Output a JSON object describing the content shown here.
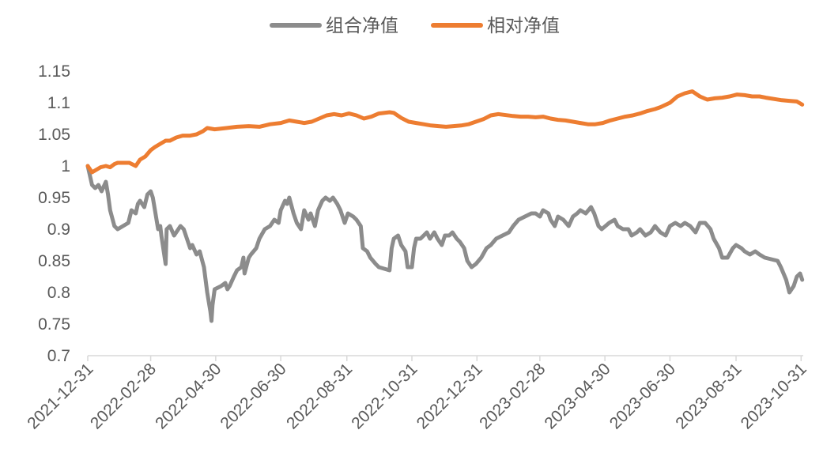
{
  "chart_data": {
    "type": "line",
    "title": "",
    "xlabel": "",
    "ylabel": "",
    "ylim": [
      0.7,
      1.15
    ],
    "yticks": [
      "0.7",
      "0.75",
      "0.8",
      "0.85",
      "0.9",
      "0.95",
      "1",
      "1.05",
      "1.1",
      "1.15"
    ],
    "xlim": [
      "2021-12-31",
      "2023-11-02"
    ],
    "xticks": [
      "2021-12-31",
      "2022-02-28",
      "2022-04-30",
      "2022-06-30",
      "2022-08-31",
      "2022-10-31",
      "2022-12-31",
      "2023-02-28",
      "2023-04-30",
      "2023-06-30",
      "2023-08-31",
      "2023-10-31"
    ],
    "legend_position": "top-center",
    "grid": false,
    "series": [
      {
        "name": "组合净值",
        "color": "#8c8c8c",
        "points": [
          [
            "2021-12-31",
            1.0
          ],
          [
            "2022-01-04",
            0.97
          ],
          [
            "2022-01-07",
            0.965
          ],
          [
            "2022-01-10",
            0.97
          ],
          [
            "2022-01-13",
            0.96
          ],
          [
            "2022-01-17",
            0.975
          ],
          [
            "2022-01-19",
            0.955
          ],
          [
            "2022-01-21",
            0.93
          ],
          [
            "2022-01-25",
            0.905
          ],
          [
            "2022-01-28",
            0.9
          ],
          [
            "2022-02-07",
            0.91
          ],
          [
            "2022-02-10",
            0.93
          ],
          [
            "2022-02-14",
            0.925
          ],
          [
            "2022-02-16",
            0.94
          ],
          [
            "2022-02-18",
            0.945
          ],
          [
            "2022-02-22",
            0.935
          ],
          [
            "2022-02-25",
            0.955
          ],
          [
            "2022-02-28",
            0.96
          ],
          [
            "2022-03-02",
            0.95
          ],
          [
            "2022-03-04",
            0.93
          ],
          [
            "2022-03-07",
            0.9
          ],
          [
            "2022-03-09",
            0.905
          ],
          [
            "2022-03-10",
            0.89
          ],
          [
            "2022-03-14",
            0.845
          ],
          [
            "2022-03-15",
            0.9
          ],
          [
            "2022-03-18",
            0.905
          ],
          [
            "2022-03-22",
            0.89
          ],
          [
            "2022-03-24",
            0.895
          ],
          [
            "2022-03-28",
            0.905
          ],
          [
            "2022-03-31",
            0.9
          ],
          [
            "2022-04-06",
            0.87
          ],
          [
            "2022-04-08",
            0.875
          ],
          [
            "2022-04-12",
            0.86
          ],
          [
            "2022-04-15",
            0.865
          ],
          [
            "2022-04-19",
            0.84
          ],
          [
            "2022-04-22",
            0.8
          ],
          [
            "2022-04-25",
            0.77
          ],
          [
            "2022-04-26",
            0.755
          ],
          [
            "2022-04-27",
            0.78
          ],
          [
            "2022-04-29",
            0.805
          ],
          [
            "2022-05-05",
            0.81
          ],
          [
            "2022-05-09",
            0.815
          ],
          [
            "2022-05-11",
            0.805
          ],
          [
            "2022-05-13",
            0.81
          ],
          [
            "2022-05-17",
            0.825
          ],
          [
            "2022-05-20",
            0.835
          ],
          [
            "2022-05-24",
            0.84
          ],
          [
            "2022-05-26",
            0.855
          ],
          [
            "2022-05-27",
            0.83
          ],
          [
            "2022-05-31",
            0.855
          ],
          [
            "2022-06-02",
            0.86
          ],
          [
            "2022-06-07",
            0.87
          ],
          [
            "2022-06-10",
            0.885
          ],
          [
            "2022-06-15",
            0.9
          ],
          [
            "2022-06-20",
            0.905
          ],
          [
            "2022-06-24",
            0.915
          ],
          [
            "2022-06-28",
            0.91
          ],
          [
            "2022-06-30",
            0.93
          ],
          [
            "2022-07-04",
            0.945
          ],
          [
            "2022-07-06",
            0.94
          ],
          [
            "2022-07-08",
            0.95
          ],
          [
            "2022-07-12",
            0.925
          ],
          [
            "2022-07-15",
            0.91
          ],
          [
            "2022-07-19",
            0.9
          ],
          [
            "2022-07-22",
            0.93
          ],
          [
            "2022-07-26",
            0.915
          ],
          [
            "2022-07-28",
            0.925
          ],
          [
            "2022-08-01",
            0.905
          ],
          [
            "2022-08-04",
            0.93
          ],
          [
            "2022-08-08",
            0.945
          ],
          [
            "2022-08-11",
            0.95
          ],
          [
            "2022-08-15",
            0.945
          ],
          [
            "2022-08-18",
            0.95
          ],
          [
            "2022-08-22",
            0.94
          ],
          [
            "2022-08-25",
            0.93
          ],
          [
            "2022-08-29",
            0.91
          ],
          [
            "2022-09-01",
            0.925
          ],
          [
            "2022-09-06",
            0.92
          ],
          [
            "2022-09-09",
            0.915
          ],
          [
            "2022-09-13",
            0.905
          ],
          [
            "2022-09-15",
            0.87
          ],
          [
            "2022-09-19",
            0.865
          ],
          [
            "2022-09-22",
            0.855
          ],
          [
            "2022-09-27",
            0.845
          ],
          [
            "2022-09-30",
            0.84
          ],
          [
            "2022-10-10",
            0.835
          ],
          [
            "2022-10-12",
            0.87
          ],
          [
            "2022-10-14",
            0.885
          ],
          [
            "2022-10-18",
            0.89
          ],
          [
            "2022-10-21",
            0.875
          ],
          [
            "2022-10-25",
            0.865
          ],
          [
            "2022-10-27",
            0.84
          ],
          [
            "2022-10-31",
            0.84
          ],
          [
            "2022-11-02",
            0.87
          ],
          [
            "2022-11-04",
            0.885
          ],
          [
            "2022-11-08",
            0.885
          ],
          [
            "2022-11-11",
            0.89
          ],
          [
            "2022-11-14",
            0.895
          ],
          [
            "2022-11-17",
            0.885
          ],
          [
            "2022-11-21",
            0.895
          ],
          [
            "2022-11-24",
            0.885
          ],
          [
            "2022-11-28",
            0.875
          ],
          [
            "2022-12-01",
            0.89
          ],
          [
            "2022-12-05",
            0.89
          ],
          [
            "2022-12-08",
            0.895
          ],
          [
            "2022-12-12",
            0.885
          ],
          [
            "2022-12-15",
            0.88
          ],
          [
            "2022-12-19",
            0.87
          ],
          [
            "2022-12-22",
            0.85
          ],
          [
            "2022-12-26",
            0.84
          ],
          [
            "2022-12-30",
            0.845
          ],
          [
            "2023-01-04",
            0.855
          ],
          [
            "2023-01-09",
            0.87
          ],
          [
            "2023-01-13",
            0.875
          ],
          [
            "2023-01-18",
            0.885
          ],
          [
            "2023-01-30",
            0.895
          ],
          [
            "2023-02-03",
            0.905
          ],
          [
            "2023-02-08",
            0.915
          ],
          [
            "2023-02-14",
            0.92
          ],
          [
            "2023-02-20",
            0.925
          ],
          [
            "2023-02-24",
            0.925
          ],
          [
            "2023-02-28",
            0.92
          ],
          [
            "2023-03-03",
            0.93
          ],
          [
            "2023-03-08",
            0.925
          ],
          [
            "2023-03-10",
            0.915
          ],
          [
            "2023-03-14",
            0.905
          ],
          [
            "2023-03-17",
            0.92
          ],
          [
            "2023-03-22",
            0.915
          ],
          [
            "2023-03-27",
            0.905
          ],
          [
            "2023-03-31",
            0.92
          ],
          [
            "2023-04-04",
            0.925
          ],
          [
            "2023-04-07",
            0.93
          ],
          [
            "2023-04-12",
            0.925
          ],
          [
            "2023-04-17",
            0.935
          ],
          [
            "2023-04-20",
            0.925
          ],
          [
            "2023-04-24",
            0.905
          ],
          [
            "2023-04-27",
            0.9
          ],
          [
            "2023-05-04",
            0.91
          ],
          [
            "2023-05-09",
            0.915
          ],
          [
            "2023-05-12",
            0.905
          ],
          [
            "2023-05-17",
            0.9
          ],
          [
            "2023-05-22",
            0.9
          ],
          [
            "2023-05-25",
            0.89
          ],
          [
            "2023-05-30",
            0.895
          ],
          [
            "2023-06-02",
            0.9
          ],
          [
            "2023-06-07",
            0.89
          ],
          [
            "2023-06-12",
            0.895
          ],
          [
            "2023-06-16",
            0.905
          ],
          [
            "2023-06-21",
            0.895
          ],
          [
            "2023-06-26",
            0.89
          ],
          [
            "2023-06-30",
            0.905
          ],
          [
            "2023-07-05",
            0.91
          ],
          [
            "2023-07-10",
            0.905
          ],
          [
            "2023-07-14",
            0.91
          ],
          [
            "2023-07-19",
            0.905
          ],
          [
            "2023-07-24",
            0.895
          ],
          [
            "2023-07-28",
            0.91
          ],
          [
            "2023-08-02",
            0.91
          ],
          [
            "2023-08-07",
            0.9
          ],
          [
            "2023-08-10",
            0.885
          ],
          [
            "2023-08-15",
            0.87
          ],
          [
            "2023-08-18",
            0.855
          ],
          [
            "2023-08-23",
            0.855
          ],
          [
            "2023-08-28",
            0.87
          ],
          [
            "2023-08-31",
            0.875
          ],
          [
            "2023-09-05",
            0.87
          ],
          [
            "2023-09-08",
            0.865
          ],
          [
            "2023-09-13",
            0.86
          ],
          [
            "2023-09-18",
            0.865
          ],
          [
            "2023-09-22",
            0.86
          ],
          [
            "2023-09-27",
            0.855
          ],
          [
            "2023-10-09",
            0.85
          ],
          [
            "2023-10-12",
            0.84
          ],
          [
            "2023-10-17",
            0.82
          ],
          [
            "2023-10-20",
            0.8
          ],
          [
            "2023-10-24",
            0.81
          ],
          [
            "2023-10-27",
            0.825
          ],
          [
            "2023-10-30",
            0.83
          ],
          [
            "2023-11-01",
            0.82
          ]
        ]
      },
      {
        "name": "相对净值",
        "color": "#ed7d31",
        "points": [
          [
            "2021-12-31",
            1.0
          ],
          [
            "2022-01-04",
            0.99
          ],
          [
            "2022-01-07",
            0.993
          ],
          [
            "2022-01-12",
            0.998
          ],
          [
            "2022-01-17",
            1.0
          ],
          [
            "2022-01-21",
            0.998
          ],
          [
            "2022-01-25",
            1.003
          ],
          [
            "2022-01-28",
            1.005
          ],
          [
            "2022-02-08",
            1.005
          ],
          [
            "2022-02-14",
            1.0
          ],
          [
            "2022-02-18",
            1.01
          ],
          [
            "2022-02-23",
            1.015
          ],
          [
            "2022-02-28",
            1.025
          ],
          [
            "2022-03-04",
            1.03
          ],
          [
            "2022-03-09",
            1.035
          ],
          [
            "2022-03-14",
            1.04
          ],
          [
            "2022-03-18",
            1.04
          ],
          [
            "2022-03-24",
            1.045
          ],
          [
            "2022-03-30",
            1.048
          ],
          [
            "2022-04-06",
            1.048
          ],
          [
            "2022-04-12",
            1.05
          ],
          [
            "2022-04-18",
            1.055
          ],
          [
            "2022-04-22",
            1.06
          ],
          [
            "2022-04-29",
            1.058
          ],
          [
            "2022-05-10",
            1.06
          ],
          [
            "2022-05-20",
            1.062
          ],
          [
            "2022-05-31",
            1.063
          ],
          [
            "2022-06-10",
            1.062
          ],
          [
            "2022-06-20",
            1.066
          ],
          [
            "2022-06-30",
            1.068
          ],
          [
            "2022-07-08",
            1.072
          ],
          [
            "2022-07-15",
            1.07
          ],
          [
            "2022-07-22",
            1.068
          ],
          [
            "2022-07-29",
            1.07
          ],
          [
            "2022-08-05",
            1.075
          ],
          [
            "2022-08-12",
            1.08
          ],
          [
            "2022-08-19",
            1.082
          ],
          [
            "2022-08-26",
            1.08
          ],
          [
            "2022-09-02",
            1.083
          ],
          [
            "2022-09-09",
            1.08
          ],
          [
            "2022-09-16",
            1.075
          ],
          [
            "2022-09-23",
            1.078
          ],
          [
            "2022-09-30",
            1.083
          ],
          [
            "2022-10-10",
            1.085
          ],
          [
            "2022-10-14",
            1.084
          ],
          [
            "2022-10-21",
            1.076
          ],
          [
            "2022-10-28",
            1.07
          ],
          [
            "2022-11-04",
            1.068
          ],
          [
            "2022-11-11",
            1.066
          ],
          [
            "2022-11-18",
            1.064
          ],
          [
            "2022-11-25",
            1.063
          ],
          [
            "2022-12-02",
            1.062
          ],
          [
            "2022-12-09",
            1.063
          ],
          [
            "2022-12-16",
            1.064
          ],
          [
            "2022-12-23",
            1.066
          ],
          [
            "2022-12-30",
            1.07
          ],
          [
            "2023-01-06",
            1.074
          ],
          [
            "2023-01-13",
            1.08
          ],
          [
            "2023-01-20",
            1.082
          ],
          [
            "2023-02-03",
            1.079
          ],
          [
            "2023-02-10",
            1.078
          ],
          [
            "2023-02-17",
            1.078
          ],
          [
            "2023-02-24",
            1.077
          ],
          [
            "2023-03-03",
            1.078
          ],
          [
            "2023-03-10",
            1.075
          ],
          [
            "2023-03-17",
            1.073
          ],
          [
            "2023-03-24",
            1.072
          ],
          [
            "2023-03-31",
            1.07
          ],
          [
            "2023-04-07",
            1.068
          ],
          [
            "2023-04-14",
            1.066
          ],
          [
            "2023-04-21",
            1.066
          ],
          [
            "2023-04-28",
            1.068
          ],
          [
            "2023-05-05",
            1.072
          ],
          [
            "2023-05-12",
            1.075
          ],
          [
            "2023-05-19",
            1.078
          ],
          [
            "2023-05-26",
            1.08
          ],
          [
            "2023-06-02",
            1.083
          ],
          [
            "2023-06-09",
            1.087
          ],
          [
            "2023-06-16",
            1.09
          ],
          [
            "2023-06-21",
            1.093
          ],
          [
            "2023-06-30",
            1.1
          ],
          [
            "2023-07-07",
            1.11
          ],
          [
            "2023-07-14",
            1.115
          ],
          [
            "2023-07-21",
            1.118
          ],
          [
            "2023-07-28",
            1.11
          ],
          [
            "2023-08-04",
            1.105
          ],
          [
            "2023-08-11",
            1.107
          ],
          [
            "2023-08-18",
            1.108
          ],
          [
            "2023-08-25",
            1.11
          ],
          [
            "2023-09-01",
            1.113
          ],
          [
            "2023-09-08",
            1.112
          ],
          [
            "2023-09-15",
            1.11
          ],
          [
            "2023-09-22",
            1.11
          ],
          [
            "2023-09-28",
            1.108
          ],
          [
            "2023-10-13",
            1.104
          ],
          [
            "2023-10-20",
            1.103
          ],
          [
            "2023-10-27",
            1.102
          ],
          [
            "2023-11-01",
            1.097
          ]
        ]
      }
    ]
  }
}
